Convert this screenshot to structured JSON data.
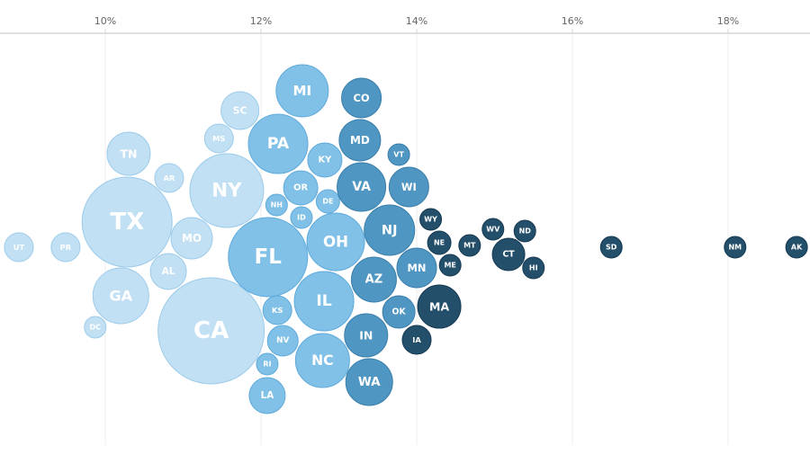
{
  "chart_data": {
    "type": "scatter",
    "subtype": "beeswarm-bubble",
    "title": "",
    "xlabel": "",
    "ylabel": "",
    "x_unit": "%",
    "xlim": [
      8.65,
      19.0
    ],
    "x_ticks": [
      "10%",
      "12%",
      "14%",
      "16%",
      "18%"
    ],
    "x_tick_values": [
      10,
      12,
      14,
      16,
      18
    ],
    "x_axis_position": "top",
    "grid": "vertical",
    "legend": "none",
    "tier_colors": {
      "1": {
        "fill": "#c2e0f4",
        "stroke": "#9ccbea"
      },
      "2": {
        "fill": "#82c1e7",
        "stroke": "#5eaadb"
      },
      "3": {
        "fill": "#4f96c2",
        "stroke": "#3b7fab"
      },
      "4": {
        "fill": "#234f6b",
        "stroke": "#163a52"
      }
    },
    "points": [
      {
        "label": "UT",
        "value": 8.89,
        "tier": 1
      },
      {
        "label": "PR",
        "value": 9.49,
        "tier": 1
      },
      {
        "label": "TX",
        "value": 10.28,
        "tier": 1
      },
      {
        "label": "TN",
        "value": 10.3,
        "tier": 1
      },
      {
        "label": "AR",
        "value": 10.82,
        "tier": 1
      },
      {
        "label": "MO",
        "value": 11.11,
        "tier": 1
      },
      {
        "label": "AL",
        "value": 10.81,
        "tier": 1
      },
      {
        "label": "GA",
        "value": 10.2,
        "tier": 1
      },
      {
        "label": "DC",
        "value": 9.87,
        "tier": 1
      },
      {
        "label": "CA",
        "value": 11.36,
        "tier": 1
      },
      {
        "label": "NY",
        "value": 11.56,
        "tier": 1
      },
      {
        "label": "MS",
        "value": 11.46,
        "tier": 1
      },
      {
        "label": "SC",
        "value": 11.73,
        "tier": 1
      },
      {
        "label": "MI",
        "value": 12.53,
        "tier": 2
      },
      {
        "label": "PA",
        "value": 12.22,
        "tier": 2
      },
      {
        "label": "KY",
        "value": 12.82,
        "tier": 2
      },
      {
        "label": "OR",
        "value": 12.51,
        "tier": 2
      },
      {
        "label": "NH",
        "value": 12.2,
        "tier": 2
      },
      {
        "label": "DE",
        "value": 12.86,
        "tier": 2
      },
      {
        "label": "ID",
        "value": 12.52,
        "tier": 2
      },
      {
        "label": "FL",
        "value": 12.09,
        "tier": 2
      },
      {
        "label": "OH",
        "value": 12.96,
        "tier": 2
      },
      {
        "label": "KS",
        "value": 12.21,
        "tier": 2
      },
      {
        "label": "IL",
        "value": 12.81,
        "tier": 2
      },
      {
        "label": "NV",
        "value": 12.28,
        "tier": 2
      },
      {
        "label": "RI",
        "value": 12.08,
        "tier": 2
      },
      {
        "label": "NC",
        "value": 12.79,
        "tier": 2
      },
      {
        "label": "LA",
        "value": 12.08,
        "tier": 2
      },
      {
        "label": "CO",
        "value": 13.29,
        "tier": 3
      },
      {
        "label": "MD",
        "value": 13.27,
        "tier": 3
      },
      {
        "label": "VA",
        "value": 13.29,
        "tier": 3
      },
      {
        "label": "VT",
        "value": 13.77,
        "tier": 3
      },
      {
        "label": "WI",
        "value": 13.9,
        "tier": 3
      },
      {
        "label": "NJ",
        "value": 13.65,
        "tier": 3
      },
      {
        "label": "AZ",
        "value": 13.45,
        "tier": 3
      },
      {
        "label": "MN",
        "value": 14.0,
        "tier": 3
      },
      {
        "label": "OK",
        "value": 13.77,
        "tier": 3
      },
      {
        "label": "IN",
        "value": 13.35,
        "tier": 3
      },
      {
        "label": "WA",
        "value": 13.39,
        "tier": 3
      },
      {
        "label": "WY",
        "value": 14.18,
        "tier": 4
      },
      {
        "label": "NE",
        "value": 14.29,
        "tier": 4
      },
      {
        "label": "ME",
        "value": 14.43,
        "tier": 4
      },
      {
        "label": "MT",
        "value": 14.68,
        "tier": 4
      },
      {
        "label": "MA",
        "value": 14.29,
        "tier": 4
      },
      {
        "label": "IA",
        "value": 14.0,
        "tier": 4
      },
      {
        "label": "WV",
        "value": 14.98,
        "tier": 4
      },
      {
        "label": "ND",
        "value": 15.39,
        "tier": 4
      },
      {
        "label": "CT",
        "value": 15.18,
        "tier": 4
      },
      {
        "label": "HI",
        "value": 15.5,
        "tier": 4
      },
      {
        "label": "SD",
        "value": 16.5,
        "tier": 4
      },
      {
        "label": "NM",
        "value": 18.09,
        "tier": 4
      },
      {
        "label": "AK",
        "value": 18.88,
        "tier": 4
      }
    ]
  }
}
